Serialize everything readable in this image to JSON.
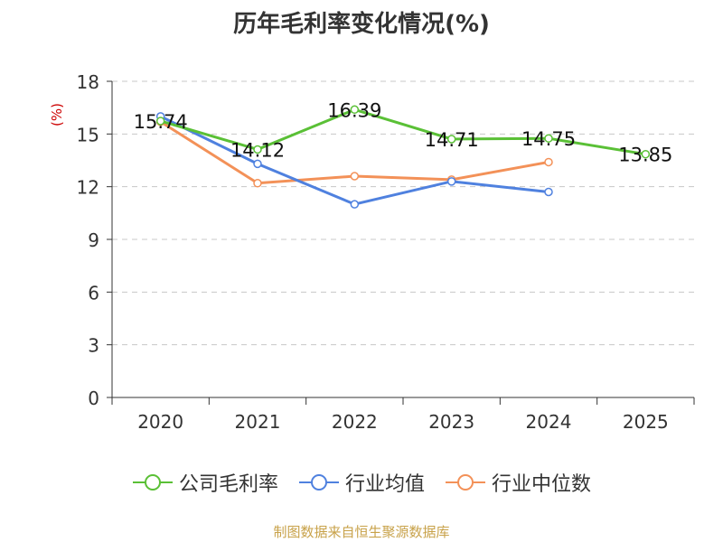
{
  "title": "历年毛利率变化情况(%)",
  "source": "制图数据来自恒生聚源数据库",
  "chart_data": {
    "type": "line",
    "title": "历年毛利率变化情况(%)",
    "ylabel": "(%)",
    "xlabel": "",
    "categories": [
      "2020",
      "2021",
      "2022",
      "2023",
      "2024",
      "2025"
    ],
    "ylim": [
      0,
      18
    ],
    "yticks": [
      "0",
      "3",
      "6",
      "9",
      "12",
      "15",
      "18"
    ],
    "grid": true,
    "legend_position": "bottom",
    "series": [
      {
        "name": "公司毛利率",
        "color": "#5ac036",
        "values": [
          15.74,
          14.12,
          16.39,
          14.71,
          14.75,
          13.85
        ],
        "labels": [
          "15.74",
          "14.12",
          "16.39",
          "14.71",
          "14.75",
          "13.85"
        ]
      },
      {
        "name": "行业均值",
        "color": "#4f81df",
        "values": [
          16.0,
          13.3,
          11.0,
          12.3,
          11.7,
          null
        ]
      },
      {
        "name": "行业中位数",
        "color": "#f39158",
        "values": [
          15.7,
          12.2,
          12.6,
          12.4,
          13.4,
          null
        ]
      }
    ]
  }
}
